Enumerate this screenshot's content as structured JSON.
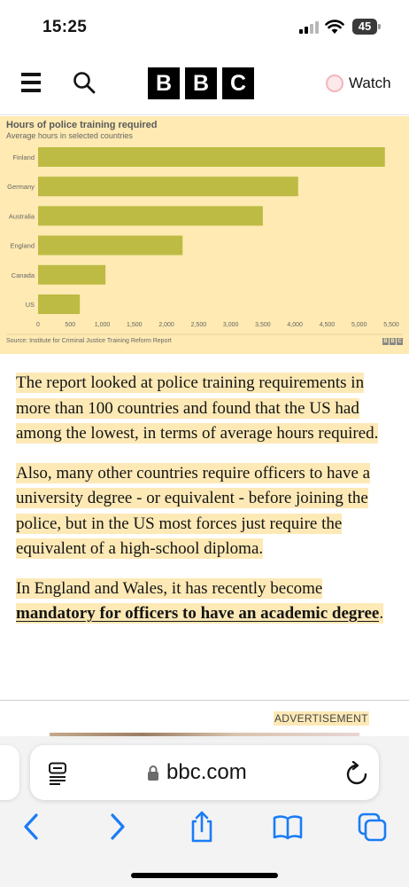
{
  "status_bar": {
    "time": "15:25",
    "battery": "45"
  },
  "header": {
    "menu_icon": "hamburger-menu-icon",
    "search_icon": "search-icon",
    "logo_letters": [
      "B",
      "B",
      "C"
    ],
    "watch_label": "Watch"
  },
  "chart_data": {
    "type": "bar",
    "orientation": "horizontal",
    "title": "Hours of police training required",
    "subtitle": "Average hours in selected countries",
    "categories": [
      "Finland",
      "Germany",
      "Australia",
      "England",
      "Canada",
      "US"
    ],
    "values": [
      5400,
      4050,
      3500,
      2250,
      1050,
      650
    ],
    "xlim": [
      0,
      5500
    ],
    "xticks": [
      "0",
      "500",
      "1,000",
      "1,500",
      "2,000",
      "2,500",
      "3,000",
      "3,500",
      "4,000",
      "4,500",
      "5,000",
      "5,500"
    ],
    "xtick_values": [
      0,
      500,
      1000,
      1500,
      2000,
      2500,
      3000,
      3500,
      4000,
      4500,
      5000,
      5500
    ],
    "bar_color": "#bdbb44",
    "grid": false,
    "source": "Source: Institute for Criminal Justice Training Reform Report",
    "brand": [
      "B",
      "B",
      "C"
    ]
  },
  "article": {
    "p1": "The report looked at police training requirements in more than 100 countries and found that the US had among the lowest, in terms of average hours required.",
    "p2": "Also, many other countries require officers to have a university degree - or equivalent - before joining the police, but in the US most forces just require the equivalent of a high-school diploma.",
    "p3_prefix": "In England and Wales, it has recently become ",
    "p3_link": "mandatory for officers to have an academic degree",
    "p3_suffix": "."
  },
  "ad": {
    "label": "ADVERTISEMENT"
  },
  "safari": {
    "url": "bbc.com",
    "icons": [
      "reader-mode-icon",
      "lock-icon",
      "reload-icon",
      "back-icon",
      "forward-icon",
      "share-icon",
      "bookmarks-icon",
      "tabs-icon"
    ]
  },
  "colors": {
    "highlight": "#fde9b6",
    "chart_background": "#feeab2",
    "ios_blue": "#1a7cf5"
  }
}
